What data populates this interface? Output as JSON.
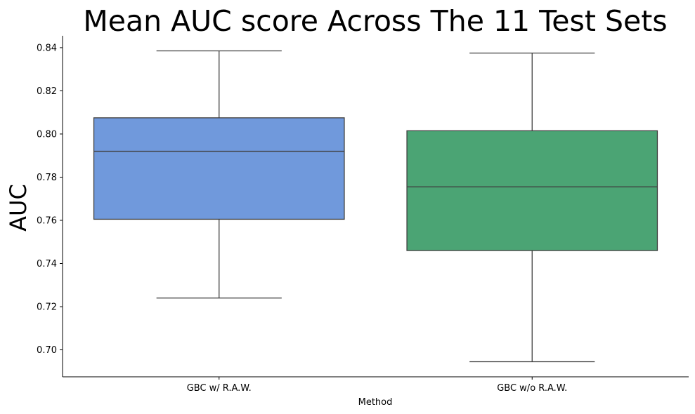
{
  "chart_data": {
    "type": "box",
    "title": "Mean AUC score Across The 11 Test Sets",
    "xlabel": "Method",
    "ylabel": "AUC",
    "ylim": [
      0.6875,
      0.8455
    ],
    "yticks": [
      "0.70",
      "0.72",
      "0.74",
      "0.76",
      "0.78",
      "0.80",
      "0.82",
      "0.84"
    ],
    "grid": false,
    "categories": [
      "GBC w/ R.A.W.",
      "GBC w/o R.A.W."
    ],
    "boxes": [
      {
        "category": "GBC w/ R.A.W.",
        "whisker_low": 0.724,
        "q1": 0.7605,
        "median": 0.792,
        "q3": 0.8075,
        "whisker_high": 0.8385,
        "color": "#7099dc"
      },
      {
        "category": "GBC w/o R.A.W.",
        "whisker_low": 0.6945,
        "q1": 0.746,
        "median": 0.7755,
        "q3": 0.8015,
        "whisker_high": 0.8375,
        "color": "#4ba474"
      }
    ]
  }
}
